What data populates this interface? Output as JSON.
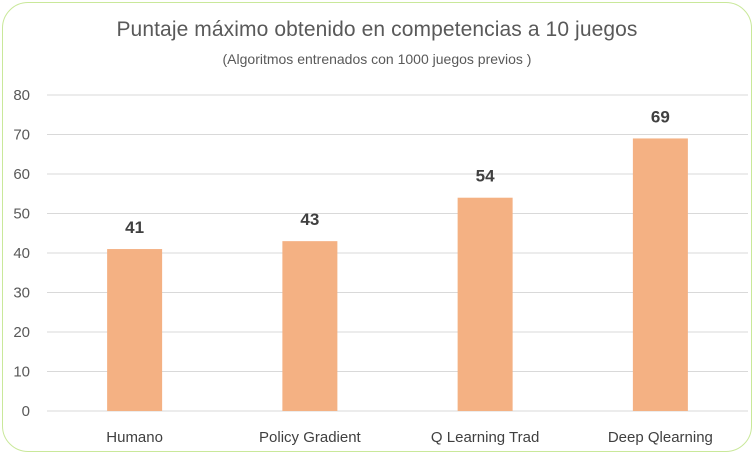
{
  "chart_data": {
    "type": "bar",
    "title": "Puntaje máximo obtenido en competencias a 10 juegos",
    "subtitle": "(Algoritmos entrenados con 1000 juegos previos )",
    "categories": [
      "Humano",
      "Policy Gradient",
      "Q Learning Trad",
      "Deep Qlearning"
    ],
    "values": [
      41,
      43,
      54,
      69
    ],
    "data_labels": [
      "41",
      "43",
      "54",
      "69"
    ],
    "y_ticks": [
      0,
      10,
      20,
      30,
      40,
      50,
      60,
      70,
      80
    ],
    "ylim": [
      0,
      80
    ],
    "xlabel": "",
    "ylabel": "",
    "grid": true,
    "legend": "none",
    "colors": {
      "bar": "#f4b183",
      "grid": "#d9d9d9",
      "frame": "#c9e89a",
      "text": "#595959"
    }
  }
}
